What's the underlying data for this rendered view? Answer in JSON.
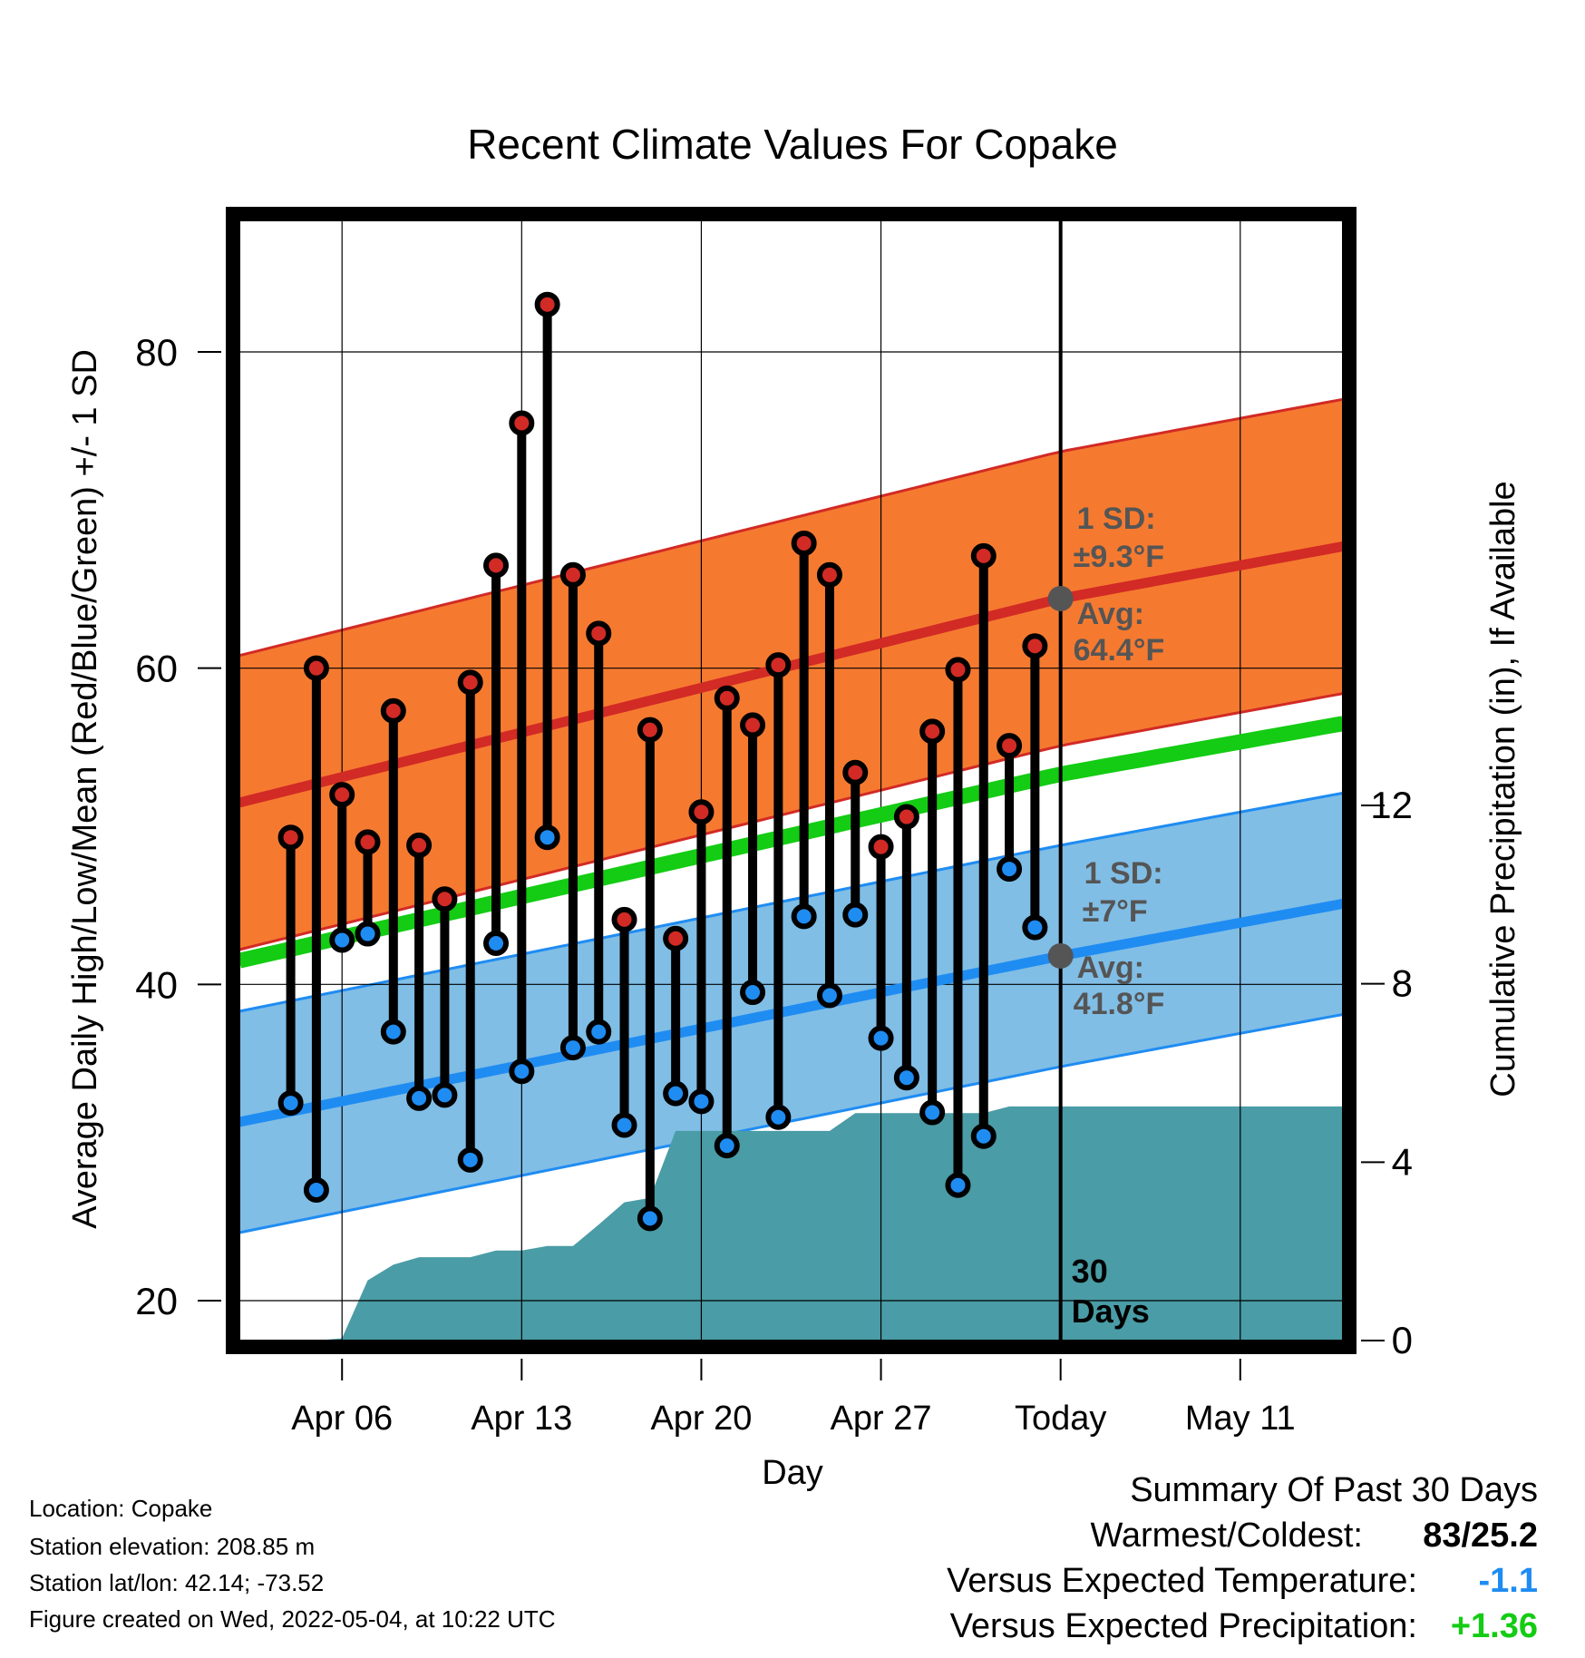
{
  "chart_data": {
    "type": "line",
    "title": "Recent Climate Values For Copake",
    "xlabel": "Day",
    "ylabel_left": "Average Daily High/Low/Mean (Red/Blue/Green) +/- 1 SD",
    "ylabel_right": "Cumulative Precipitation (in), If Available",
    "x_range": [
      "2022-04-02",
      "2022-05-15"
    ],
    "ylim_left": [
      18,
      89
    ],
    "ylim_right": [
      0,
      26
    ],
    "grid": true,
    "x_ticks": [
      {
        "date": "2022-04-06",
        "label": "Apr 06"
      },
      {
        "date": "2022-04-13",
        "label": "Apr 13"
      },
      {
        "date": "2022-04-20",
        "label": "Apr 20"
      },
      {
        "date": "2022-04-27",
        "label": "Apr 27"
      },
      {
        "date": "2022-05-04",
        "label": "Today"
      },
      {
        "date": "2022-05-11",
        "label": "May 11"
      }
    ],
    "y_ticks_left": [
      20,
      40,
      60,
      80
    ],
    "y_ticks_right": [
      0,
      4,
      8,
      12
    ],
    "today": "2022-05-04",
    "window_label": "30\nDays",
    "normal_high": {
      "dates": [
        "2022-04-02",
        "2022-05-04",
        "2022-05-15"
      ],
      "avg": [
        51.5,
        64.4,
        67.7
      ],
      "sd": 9.3
    },
    "normal_low": {
      "dates": [
        "2022-04-02",
        "2022-05-04",
        "2022-05-15"
      ],
      "avg": [
        31.3,
        41.8,
        45.1
      ],
      "sd": 7
    },
    "normal_mean": {
      "dates": [
        "2022-04-02",
        "2022-05-04",
        "2022-05-15"
      ],
      "values": [
        41.5,
        53.3,
        56.5
      ]
    },
    "high_annotation": {
      "sd_label": "1 SD:",
      "sd_value": "±9.3°F",
      "avg_label": "Avg:",
      "avg_value": "64.4°F"
    },
    "low_annotation": {
      "sd_label": "1 SD:",
      "sd_value": "±7°F",
      "avg_label": "Avg:",
      "avg_value": "41.8°F"
    },
    "daily": [
      {
        "date": "2022-04-04",
        "high": 49.3,
        "low": 32.5
      },
      {
        "date": "2022-04-05",
        "high": 60.0,
        "low": 27.0
      },
      {
        "date": "2022-04-06",
        "high": 52.0,
        "low": 42.8
      },
      {
        "date": "2022-04-07",
        "high": 49.0,
        "low": 43.2
      },
      {
        "date": "2022-04-08",
        "high": 57.3,
        "low": 37.0
      },
      {
        "date": "2022-04-09",
        "high": 48.8,
        "low": 32.8
      },
      {
        "date": "2022-04-10",
        "high": 45.4,
        "low": 33.0
      },
      {
        "date": "2022-04-11",
        "high": 59.1,
        "low": 28.9
      },
      {
        "date": "2022-04-12",
        "high": 66.5,
        "low": 42.6
      },
      {
        "date": "2022-04-13",
        "high": 75.5,
        "low": 34.5
      },
      {
        "date": "2022-04-14",
        "high": 83.0,
        "low": 49.3
      },
      {
        "date": "2022-04-15",
        "high": 65.9,
        "low": 36.0
      },
      {
        "date": "2022-04-16",
        "high": 62.2,
        "low": 37.0
      },
      {
        "date": "2022-04-17",
        "high": 44.1,
        "low": 31.1
      },
      {
        "date": "2022-04-18",
        "high": 56.1,
        "low": 25.2
      },
      {
        "date": "2022-04-19",
        "high": 42.9,
        "low": 33.1
      },
      {
        "date": "2022-04-20",
        "high": 50.9,
        "low": 32.6
      },
      {
        "date": "2022-04-21",
        "high": 58.1,
        "low": 29.8
      },
      {
        "date": "2022-04-22",
        "high": 56.4,
        "low": 39.5
      },
      {
        "date": "2022-04-23",
        "high": 60.2,
        "low": 31.6
      },
      {
        "date": "2022-04-24",
        "high": 67.9,
        "low": 44.3
      },
      {
        "date": "2022-04-25",
        "high": 65.9,
        "low": 39.3
      },
      {
        "date": "2022-04-26",
        "high": 53.4,
        "low": 44.4
      },
      {
        "date": "2022-04-27",
        "high": 48.7,
        "low": 36.6
      },
      {
        "date": "2022-04-28",
        "high": 50.6,
        "low": 34.1
      },
      {
        "date": "2022-04-29",
        "high": 56.0,
        "low": 31.9
      },
      {
        "date": "2022-04-30",
        "high": 59.9,
        "low": 27.3
      },
      {
        "date": "2022-05-01",
        "high": 67.1,
        "low": 30.4
      },
      {
        "date": "2022-05-02",
        "high": 55.1,
        "low": 47.3
      },
      {
        "date": "2022-05-03",
        "high": 61.4,
        "low": 43.6
      }
    ],
    "precip_cumulative": [
      {
        "date": "2022-04-02",
        "value": 0
      },
      {
        "date": "2022-04-04",
        "value": 0
      },
      {
        "date": "2022-04-05",
        "value": 0
      },
      {
        "date": "2022-04-06",
        "value": 0.05
      },
      {
        "date": "2022-04-07",
        "value": 1.35
      },
      {
        "date": "2022-04-08",
        "value": 1.7
      },
      {
        "date": "2022-04-09",
        "value": 1.87
      },
      {
        "date": "2022-04-11",
        "value": 1.87
      },
      {
        "date": "2022-04-12",
        "value": 2.02
      },
      {
        "date": "2022-04-13",
        "value": 2.02
      },
      {
        "date": "2022-04-14",
        "value": 2.12
      },
      {
        "date": "2022-04-15",
        "value": 2.12
      },
      {
        "date": "2022-04-16",
        "value": 2.6
      },
      {
        "date": "2022-04-17",
        "value": 3.1
      },
      {
        "date": "2022-04-18",
        "value": 3.2
      },
      {
        "date": "2022-04-19",
        "value": 4.7
      },
      {
        "date": "2022-04-25",
        "value": 4.7
      },
      {
        "date": "2022-04-26",
        "value": 5.1
      },
      {
        "date": "2022-05-01",
        "value": 5.1
      },
      {
        "date": "2022-05-02",
        "value": 5.25
      },
      {
        "date": "2022-05-15",
        "value": 5.25
      }
    ],
    "colors": {
      "high_band": "#f57a30",
      "high_line": "#d22a25",
      "low_band": "#80bee6",
      "low_line": "#1f8cf2",
      "mean_line": "#13cc13",
      "precip": "#4a9ca6",
      "high_dot": "#d22a25",
      "low_dot": "#1f8cf2",
      "annotation": "#555555"
    }
  },
  "footer": {
    "location": "Location: Copake",
    "elevation": "Station elevation: 208.85 m",
    "latlon": "Station lat/lon: 42.14; -73.52",
    "created": "Figure created on Wed, 2022-05-04, at 10:22 UTC"
  },
  "summary": {
    "heading": "Summary Of Past 30 Days",
    "warmest_label": "Warmest/Coldest:",
    "warmest_value": "83/25.2",
    "temp_label": "Versus Expected Temperature:",
    "temp_value": "-1.1",
    "temp_color": "#1f8cf2",
    "precip_label": "Versus Expected Precipitation:",
    "precip_value": "+1.36",
    "precip_color": "#13cc13"
  }
}
